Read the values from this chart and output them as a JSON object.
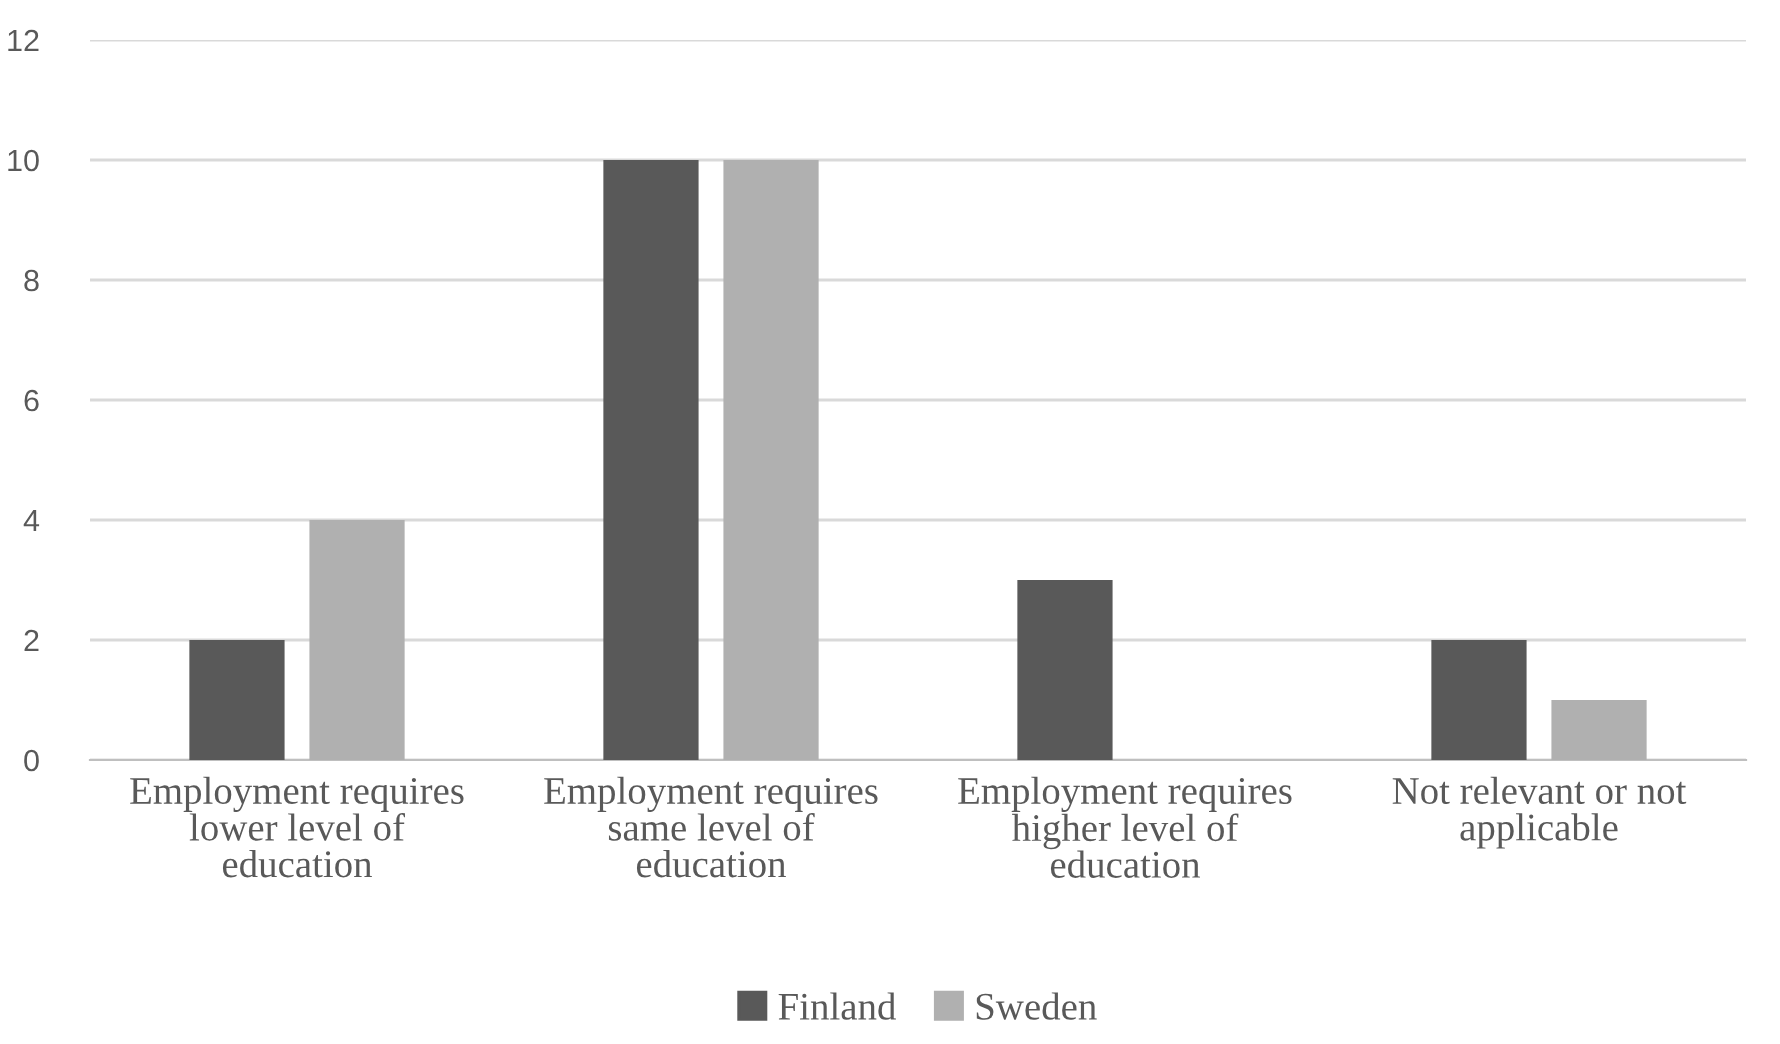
{
  "chart_data": {
    "type": "bar",
    "categories": [
      "Employment requires\nlower level of\neducation",
      "Employment requires\nsame level of\neducation",
      "Employment requires\nhigher level of\neducation",
      "Not relevant or not\napplicable"
    ],
    "series": [
      {
        "name": "Finland",
        "color": "#595959",
        "values": [
          2,
          10,
          3,
          2
        ]
      },
      {
        "name": "Sweden",
        "color": "#b0b0b0",
        "values": [
          4,
          10,
          0,
          1
        ]
      }
    ],
    "ylim": [
      0,
      12
    ],
    "yticks": [
      0,
      2,
      4,
      6,
      8,
      10,
      12
    ],
    "grid": "y",
    "legend": "bottom"
  }
}
